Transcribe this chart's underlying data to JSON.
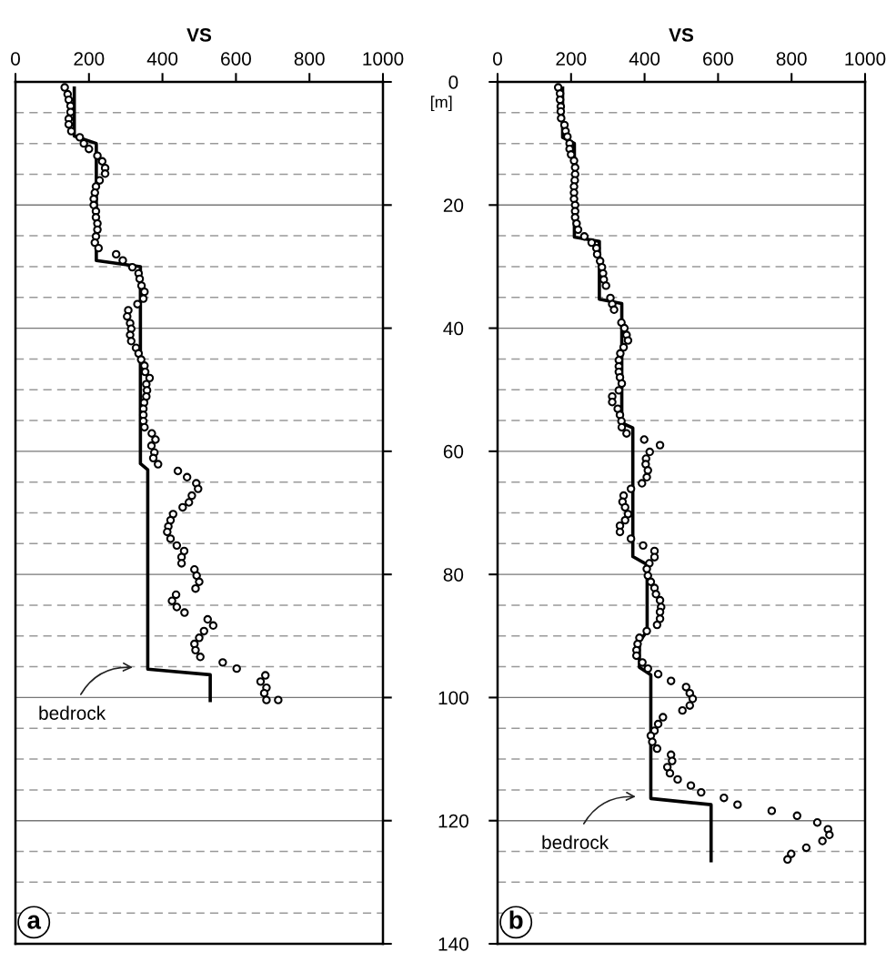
{
  "chart_data": [
    {
      "type": "scatter",
      "xlabel": "VS",
      "xlim": [
        0,
        1000
      ],
      "xticks": [
        0,
        200,
        400,
        600,
        800,
        1000
      ],
      "ylim": [
        140,
        0
      ],
      "yticks": [
        0,
        20,
        40,
        60,
        80,
        100,
        120,
        140
      ],
      "tick_labels": "x",
      "grid": "y",
      "legend": false,
      "series": [
        {
          "type": "line",
          "color": "#000000",
          "marker": "none",
          "line_style": "solid",
          "x": [
            160,
            160,
            220,
            220,
            340,
            340,
            360,
            360,
            530,
            530
          ],
          "values": [
            1,
            8.8,
            10,
            29,
            30,
            62,
            63,
            95.4,
            96.3,
            100.5
          ]
        },
        {
          "color": "#000000",
          "marker": "circle",
          "x": [
            134,
            142,
            145,
            150,
            150,
            145,
            145,
            152,
            175,
            186,
            200,
            223,
            236,
            244,
            244,
            229,
            219,
            216,
            213,
            213,
            219,
            219,
            223,
            223,
            219,
            216,
            226,
            274,
            292,
            318,
            335,
            338,
            343,
            351,
            348,
            332,
            307,
            304,
            312,
            315,
            312,
            315,
            328,
            335,
            342,
            351,
            353,
            365,
            356,
            358,
            356,
            350,
            348,
            348,
            348,
            351,
            371,
            381,
            370,
            378,
            375,
            388,
            442,
            467,
            492,
            497,
            480,
            472,
            455,
            429,
            422,
            416,
            413,
            422,
            439,
            459,
            452,
            452,
            487,
            493,
            500,
            490,
            437,
            426,
            439,
            460,
            523,
            538,
            513,
            500,
            487,
            490,
            503,
            564,
            602,
            680,
            667,
            683,
            677,
            683,
            715
          ],
          "values": [
            0.9,
            2.0,
            2.9,
            3.9,
            4.9,
            6.0,
            6.9,
            8.0,
            9.0,
            10.0,
            10.9,
            12.0,
            12.9,
            14.0,
            14.9,
            16.0,
            17.0,
            18.0,
            19.0,
            20.0,
            21.0,
            22.0,
            23.0,
            24.0,
            25.1,
            26.1,
            27.0,
            28.0,
            29.0,
            30.1,
            31.1,
            32.0,
            33.1,
            34.1,
            35.2,
            36.1,
            37.1,
            38.1,
            39.2,
            40.1,
            41.1,
            42.1,
            43.2,
            44.1,
            45.1,
            46.1,
            47.1,
            48.1,
            49.1,
            50.1,
            51.1,
            52.1,
            53.1,
            54.1,
            55.1,
            56.1,
            57.1,
            58.1,
            59.1,
            60.2,
            61.1,
            62.1,
            63.2,
            64.2,
            65.2,
            66.1,
            67.2,
            68.3,
            69.1,
            70.2,
            71.2,
            72.2,
            73.1,
            74.2,
            75.3,
            76.2,
            77.2,
            78.2,
            79.2,
            80.2,
            81.2,
            82.3,
            83.3,
            84.3,
            85.3,
            86.2,
            87.3,
            88.3,
            89.2,
            90.3,
            91.3,
            92.3,
            93.4,
            94.3,
            95.3,
            96.4,
            97.4,
            98.4,
            99.3,
            100.4,
            100.4
          ]
        }
      ],
      "ref_lines": [
        {
          "axis": "y",
          "value": 5,
          "color": "#999999",
          "line_style": "dashed"
        },
        {
          "axis": "y",
          "value": 10,
          "color": "#999999",
          "line_style": "dashed"
        },
        {
          "axis": "y",
          "value": 15,
          "color": "#999999",
          "line_style": "dashed"
        },
        {
          "axis": "y",
          "value": 25,
          "color": "#999999",
          "line_style": "dashed"
        },
        {
          "axis": "y",
          "value": 30,
          "color": "#999999",
          "line_style": "dashed"
        },
        {
          "axis": "y",
          "value": 35,
          "color": "#999999",
          "line_style": "dashed"
        },
        {
          "axis": "y",
          "value": 45,
          "color": "#999999",
          "line_style": "dashed"
        },
        {
          "axis": "y",
          "value": 50,
          "color": "#999999",
          "line_style": "dashed"
        },
        {
          "axis": "y",
          "value": 55,
          "color": "#999999",
          "line_style": "dashed"
        },
        {
          "axis": "y",
          "value": 65,
          "color": "#999999",
          "line_style": "dashed"
        },
        {
          "axis": "y",
          "value": 70,
          "color": "#999999",
          "line_style": "dashed"
        },
        {
          "axis": "y",
          "value": 75,
          "color": "#999999",
          "line_style": "dashed"
        },
        {
          "axis": "y",
          "value": 85,
          "color": "#999999",
          "line_style": "dashed"
        },
        {
          "axis": "y",
          "value": 90,
          "color": "#999999",
          "line_style": "dashed"
        },
        {
          "axis": "y",
          "value": 95,
          "color": "#999999",
          "line_style": "dashed"
        },
        {
          "axis": "y",
          "value": 105,
          "color": "#999999",
          "line_style": "dashed"
        },
        {
          "axis": "y",
          "value": 110,
          "color": "#999999",
          "line_style": "dashed"
        },
        {
          "axis": "y",
          "value": 115,
          "color": "#999999",
          "line_style": "dashed"
        },
        {
          "axis": "y",
          "value": 125,
          "color": "#999999",
          "line_style": "dashed"
        },
        {
          "axis": "y",
          "value": 130,
          "color": "#999999",
          "line_style": "dashed"
        },
        {
          "axis": "y",
          "value": 135,
          "color": "#999999",
          "line_style": "dashed"
        }
      ],
      "annotations": [
        "a",
        {
          "text": "bedrock",
          "x": 360,
          "y": 95.4
        }
      ]
    },
    {
      "type": "scatter",
      "xlabel": "VS",
      "ylabel": "[m]",
      "xlim": [
        0,
        1000
      ],
      "xticks": [
        0,
        200,
        400,
        600,
        800,
        1000
      ],
      "ylim": [
        140,
        0
      ],
      "yticks": [
        0,
        20,
        40,
        60,
        80,
        100,
        120,
        140
      ],
      "grid": "y",
      "legend": false,
      "series": [
        {
          "type": "line",
          "color": "#000000",
          "marker": "none",
          "line_style": "solid",
          "x": [
            177,
            177,
            209,
            209,
            277,
            277,
            338,
            338,
            368,
            368,
            407,
            407,
            386,
            386,
            417,
            417,
            581,
            581
          ],
          "values": [
            1,
            9,
            10,
            25.2,
            25.9,
            35.3,
            36,
            55.4,
            56.2,
            77.1,
            78.4,
            89.2,
            90.9,
            95.1,
            96.3,
            116.4,
            117.4,
            126.5
          ]
        },
        {
          "color": "#000000",
          "marker": "circle",
          "x": [
            165,
            170,
            170,
            172,
            172,
            173,
            182,
            185,
            190,
            196,
            196,
            200,
            208,
            211,
            211,
            210,
            208,
            208,
            208,
            211,
            211,
            211,
            215,
            219,
            236,
            256,
            269,
            271,
            279,
            284,
            287,
            289,
            295,
            307,
            312,
            317,
            337,
            345,
            351,
            355,
            343,
            334,
            330,
            330,
            330,
            333,
            338,
            330,
            312,
            312,
            327,
            333,
            337,
            338,
            351,
            399,
            442,
            414,
            404,
            403,
            409,
            406,
            393,
            363,
            343,
            340,
            347,
            355,
            347,
            333,
            333,
            363,
            396,
            427,
            427,
            413,
            406,
            409,
            417,
            427,
            431,
            442,
            445,
            442,
            442,
            434,
            406,
            386,
            381,
            378,
            378,
            394,
            409,
            437,
            472,
            513,
            523,
            531,
            523,
            503,
            450,
            437,
            427,
            417,
            421,
            434,
            472,
            475,
            462,
            469,
            490,
            526,
            554,
            616,
            653,
            746,
            815,
            870,
            899,
            903,
            884,
            840,
            799,
            789
          ],
          "values": [
            0.9,
            1.9,
            2.9,
            4.0,
            4.8,
            5.9,
            7.0,
            8.0,
            8.9,
            10.0,
            10.9,
            11.8,
            12.8,
            13.9,
            15.0,
            16.0,
            17.0,
            18.0,
            19.0,
            20.0,
            21.0,
            22.0,
            23.0,
            24.0,
            25.1,
            26.1,
            27.0,
            28.0,
            29.1,
            30.1,
            31.1,
            32.1,
            33.1,
            35.1,
            36.1,
            37.0,
            39.1,
            40.0,
            41.1,
            42.0,
            43.1,
            44.1,
            45.2,
            46.2,
            47.1,
            48.0,
            49.0,
            50.1,
            51.1,
            52.0,
            53.1,
            54.1,
            55.1,
            56.1,
            57.1,
            58.1,
            59.0,
            60.1,
            61.2,
            62.1,
            63.1,
            64.2,
            65.2,
            66.1,
            67.2,
            68.2,
            69.1,
            70.2,
            71.2,
            72.1,
            73.1,
            74.2,
            75.3,
            76.2,
            77.2,
            78.2,
            79.1,
            80.2,
            81.2,
            82.2,
            83.2,
            84.2,
            85.3,
            86.1,
            87.2,
            88.2,
            89.2,
            90.3,
            91.3,
            92.3,
            93.2,
            94.3,
            95.3,
            96.2,
            97.3,
            98.3,
            99.3,
            100.2,
            101.3,
            102.1,
            103.2,
            104.3,
            105.4,
            106.2,
            107.2,
            108.3,
            109.3,
            110.3,
            111.3,
            112.3,
            113.3,
            114.3,
            115.4,
            116.3,
            117.4,
            118.4,
            119.2,
            120.3,
            121.4,
            122.3,
            123.3,
            124.4,
            125.4,
            126.3
          ]
        }
      ],
      "ref_lines": [
        {
          "axis": "y",
          "value": 5,
          "color": "#999999",
          "line_style": "dashed"
        },
        {
          "axis": "y",
          "value": 10,
          "color": "#999999",
          "line_style": "dashed"
        },
        {
          "axis": "y",
          "value": 15,
          "color": "#999999",
          "line_style": "dashed"
        },
        {
          "axis": "y",
          "value": 25,
          "color": "#999999",
          "line_style": "dashed"
        },
        {
          "axis": "y",
          "value": 30,
          "color": "#999999",
          "line_style": "dashed"
        },
        {
          "axis": "y",
          "value": 35,
          "color": "#999999",
          "line_style": "dashed"
        },
        {
          "axis": "y",
          "value": 45,
          "color": "#999999",
          "line_style": "dashed"
        },
        {
          "axis": "y",
          "value": 50,
          "color": "#999999",
          "line_style": "dashed"
        },
        {
          "axis": "y",
          "value": 55,
          "color": "#999999",
          "line_style": "dashed"
        },
        {
          "axis": "y",
          "value": 65,
          "color": "#999999",
          "line_style": "dashed"
        },
        {
          "axis": "y",
          "value": 70,
          "color": "#999999",
          "line_style": "dashed"
        },
        {
          "axis": "y",
          "value": 75,
          "color": "#999999",
          "line_style": "dashed"
        },
        {
          "axis": "y",
          "value": 85,
          "color": "#999999",
          "line_style": "dashed"
        },
        {
          "axis": "y",
          "value": 90,
          "color": "#999999",
          "line_style": "dashed"
        },
        {
          "axis": "y",
          "value": 95,
          "color": "#999999",
          "line_style": "dashed"
        },
        {
          "axis": "y",
          "value": 105,
          "color": "#999999",
          "line_style": "dashed"
        },
        {
          "axis": "y",
          "value": 110,
          "color": "#999999",
          "line_style": "dashed"
        },
        {
          "axis": "y",
          "value": 115,
          "color": "#999999",
          "line_style": "dashed"
        },
        {
          "axis": "y",
          "value": 125,
          "color": "#999999",
          "line_style": "dashed"
        },
        {
          "axis": "y",
          "value": 130,
          "color": "#999999",
          "line_style": "dashed"
        },
        {
          "axis": "y",
          "value": 135,
          "color": "#999999",
          "line_style": "dashed"
        }
      ],
      "annotations": [
        "b",
        {
          "text": "bedrock",
          "x": 417,
          "y": 116.4
        }
      ]
    }
  ]
}
